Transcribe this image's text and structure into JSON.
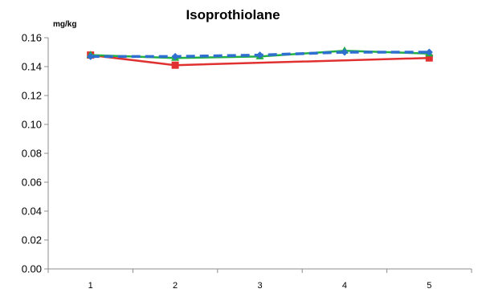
{
  "chart_data": {
    "type": "line",
    "title": "Isoprothiolane",
    "ylabel": "mg/kg",
    "xlabel": "",
    "categories": [
      "1",
      "2",
      "3",
      "4",
      "5"
    ],
    "ylim": [
      0,
      0.16
    ],
    "yticks": [
      "0.00",
      "0.02",
      "0.04",
      "0.06",
      "0.08",
      "0.10",
      "0.12",
      "0.14",
      "0.16"
    ],
    "grid": false,
    "legend": "none",
    "series": [
      {
        "color": "#e03030",
        "marker": "square",
        "style": "solid",
        "values": [
          0.148,
          0.141,
          null,
          null,
          0.146
        ]
      },
      {
        "color": "#20b040",
        "marker": "triangle",
        "style": "solid",
        "values": [
          0.148,
          0.146,
          0.147,
          0.151,
          0.149
        ]
      },
      {
        "color": "#2e6fd0",
        "marker": "diamond",
        "style": "dashed",
        "values": [
          0.147,
          0.147,
          0.148,
          0.15,
          0.15
        ]
      }
    ]
  }
}
